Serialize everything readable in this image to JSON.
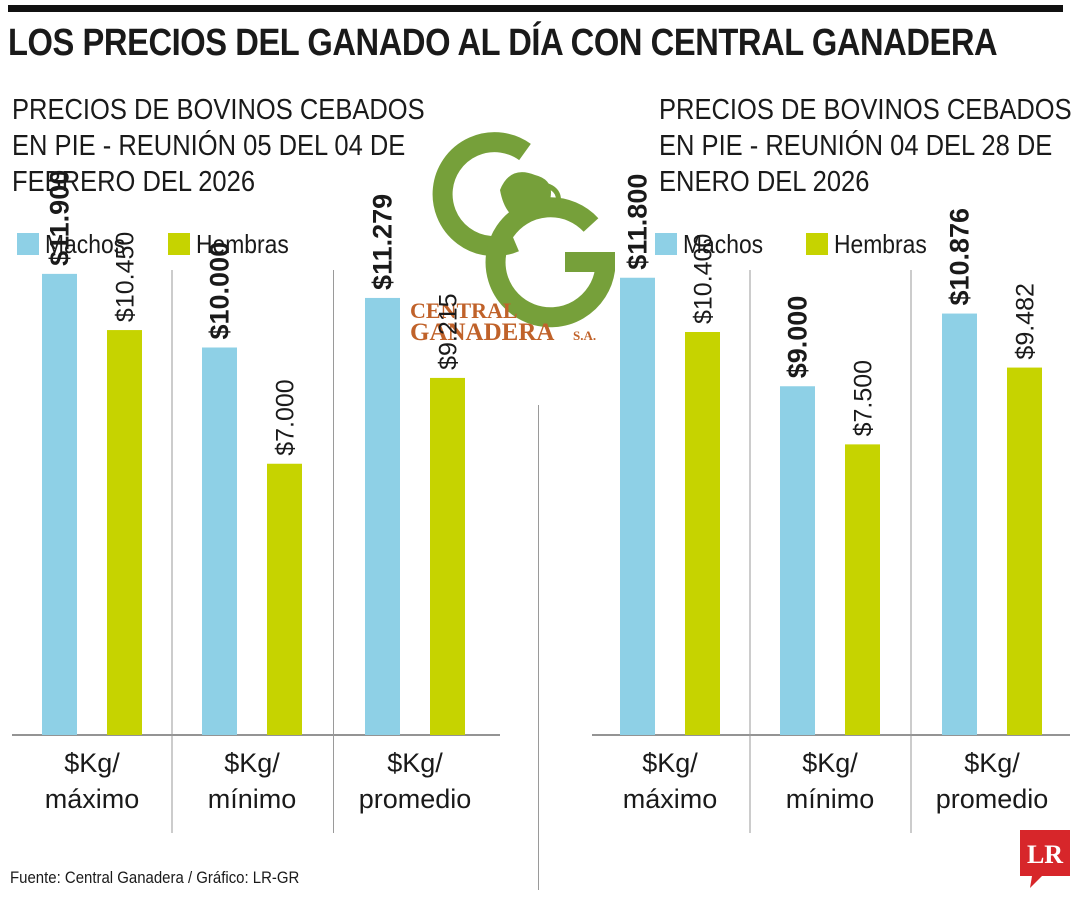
{
  "title": "LOS PRECIOS DEL GANADO AL DÍA CON CENTRAL GANADERA",
  "legend": {
    "machos": "Machos",
    "hembras": "Hembras"
  },
  "colors": {
    "machos": "#8ed0e6",
    "hembras": "#c6d300",
    "logo_green": "#76a03a",
    "logo_orange": "#c0622a",
    "lr_red": "#d7262a"
  },
  "logo": {
    "line1": "CENTRAL",
    "line2": "GANADERA",
    "suffix": "S.A."
  },
  "brand": {
    "lr": "LR"
  },
  "source": "Fuente: Central Ganadera / Gráfico: LR-GR",
  "chart_data": [
    {
      "type": "bar",
      "title": "PRECIOS DE BOVINOS CEBADOS\nEN PIE - REUNIÓN 05 DEL 04 DE\nFEBRERO DEL 2026",
      "categories": [
        "$Kg/\nmáximo",
        "$Kg/\nmínimo",
        "$Kg/\npromedio"
      ],
      "series": [
        {
          "name": "Machos",
          "values": [
            11900,
            10000,
            11279
          ],
          "labels": [
            "$11.900",
            "$10.000",
            "$11.279"
          ]
        },
        {
          "name": "Hembras",
          "values": [
            10450,
            7000,
            9215
          ],
          "labels": [
            "$10.450",
            "$7.000",
            "$9.215"
          ]
        }
      ],
      "ylim": [
        0,
        16000
      ],
      "legend_position": "top-left"
    },
    {
      "type": "bar",
      "title": "PRECIOS DE BOVINOS CEBADOS\nEN PIE - REUNIÓN 04 DEL 28 DE\nENERO DEL 2026",
      "categories": [
        "$Kg/\nmáximo",
        "$Kg/\nmínimo",
        "$Kg/\npromedio"
      ],
      "series": [
        {
          "name": "Machos",
          "values": [
            11800,
            9000,
            10876
          ],
          "labels": [
            "$11.800",
            "$9.000",
            "$10.876"
          ]
        },
        {
          "name": "Hembras",
          "values": [
            10400,
            7500,
            9482
          ],
          "labels": [
            "$10.400",
            "$7.500",
            "$9.482"
          ]
        }
      ],
      "ylim": [
        0,
        16000
      ],
      "legend_position": "top-left"
    }
  ]
}
